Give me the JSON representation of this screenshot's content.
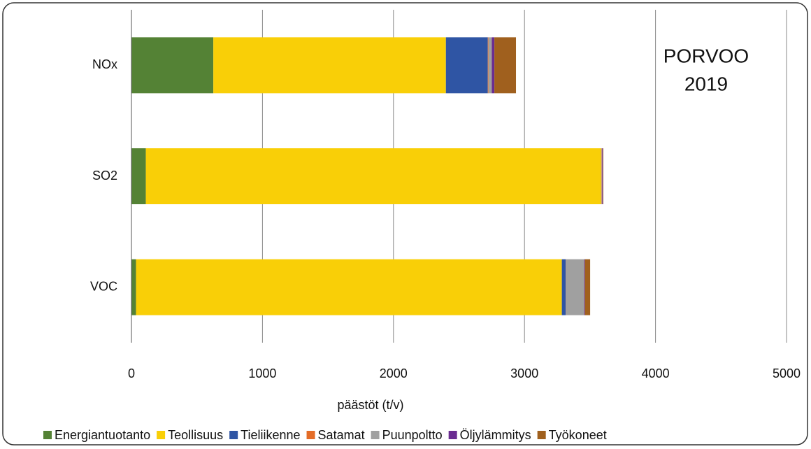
{
  "chart_data": {
    "type": "stacked_barh",
    "categories": [
      "NOx",
      "SO2",
      "VOC"
    ],
    "series": [
      {
        "name": "Energiantuotanto",
        "color": "#548235",
        "values": [
          625,
          110,
          35
        ]
      },
      {
        "name": "Teollisuus",
        "color": "#f9cf07",
        "values": [
          1775,
          3475,
          3250
        ]
      },
      {
        "name": "Tieliikenne",
        "color": "#2f55a4",
        "values": [
          320,
          2,
          30
        ]
      },
      {
        "name": "Satamat",
        "color": "#e46c27",
        "values": [
          5,
          3,
          1
        ]
      },
      {
        "name": "Puunpoltto",
        "color": "#a0a0a0",
        "values": [
          25,
          3,
          140
        ]
      },
      {
        "name": "Öljylämmitys",
        "color": "#6a2c91",
        "values": [
          20,
          5,
          5
        ]
      },
      {
        "name": "Työkoneet",
        "color": "#a0601e",
        "values": [
          165,
          4,
          40
        ]
      }
    ],
    "xlim": [
      0,
      5000
    ],
    "xticks": [
      0,
      1000,
      2000,
      3000,
      4000,
      5000
    ],
    "xlabel": "päästöt (t/v)",
    "annotation": [
      "PORVOO",
      "2019"
    ],
    "grid": true,
    "legend": "bottom"
  }
}
